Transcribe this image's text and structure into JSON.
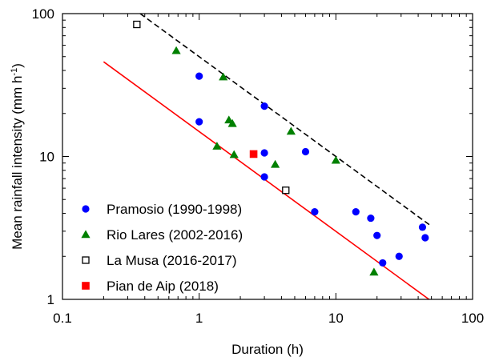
{
  "chart_data": {
    "type": "scatter",
    "xlabel": "Duration (h)",
    "ylabel": "Mean rainfall intensity (mm h",
    "ylabel_sup": "-1",
    "ylabel_close": ")",
    "xscale": "log",
    "yscale": "log",
    "xlim": [
      0.1,
      100
    ],
    "ylim": [
      1,
      100
    ],
    "xticks": [
      0.1,
      1,
      10,
      100
    ],
    "xtick_labels": [
      "0.1",
      "1",
      "10",
      "100"
    ],
    "yticks": [
      1,
      10,
      100
    ],
    "ytick_labels": [
      "1",
      "10",
      "100"
    ],
    "grid": false,
    "legend_position": "bottom-left",
    "series": [
      {
        "name": "Pramosio (1990-1998)",
        "marker": "circle",
        "color": "#0000ff",
        "points": [
          [
            1.0,
            36.5
          ],
          [
            1.0,
            17.5
          ],
          [
            3.0,
            22.5
          ],
          [
            3.0,
            10.6
          ],
          [
            3.0,
            7.2
          ],
          [
            6.0,
            10.8
          ],
          [
            7.0,
            4.1
          ],
          [
            14.0,
            4.1
          ],
          [
            18.0,
            3.7
          ],
          [
            20.0,
            2.8
          ],
          [
            22.0,
            1.8
          ],
          [
            29.0,
            2.0
          ],
          [
            43.0,
            3.2
          ],
          [
            45.0,
            2.7
          ]
        ]
      },
      {
        "name": "Rio Lares (2002-2016)",
        "marker": "triangle",
        "color": "#008000",
        "points": [
          [
            0.68,
            55.0
          ],
          [
            1.5,
            36.0
          ],
          [
            1.35,
            11.8
          ],
          [
            1.65,
            18.0
          ],
          [
            1.75,
            17.0
          ],
          [
            1.8,
            10.3
          ],
          [
            3.6,
            8.8
          ],
          [
            4.7,
            15.0
          ],
          [
            10.0,
            9.4
          ],
          [
            19.0,
            1.55
          ]
        ]
      },
      {
        "name": "La Musa (2016-2017)",
        "marker": "open-square",
        "color": "#000000",
        "points": [
          [
            0.35,
            84.0
          ],
          [
            4.3,
            5.8
          ]
        ]
      },
      {
        "name": "Pian de Aip (2018)",
        "marker": "square",
        "color": "#ff0000",
        "points": [
          [
            2.5,
            10.4
          ]
        ]
      }
    ],
    "lines": [
      {
        "style": "dashed",
        "color": "#000000",
        "points": [
          [
            0.37,
            100
          ],
          [
            50,
            3.25
          ]
        ]
      },
      {
        "style": "solid",
        "color": "#ff0000",
        "points": [
          [
            0.2,
            46
          ],
          [
            48,
            1.0
          ]
        ]
      }
    ]
  }
}
